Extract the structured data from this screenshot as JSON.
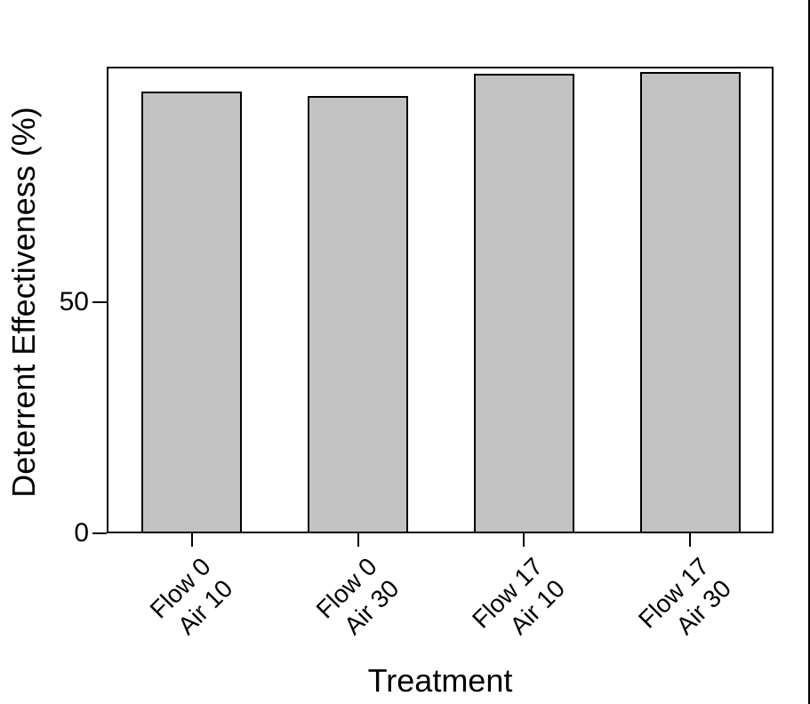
{
  "chart_data": {
    "type": "bar",
    "xlabel": "Treatment",
    "ylabel": "Deterrent Effectiveness (%)",
    "categories": [
      "Flow 0\nAir 10",
      "Flow 0\nAir 30",
      "Flow 17\nAir 10",
      "Flow 17\nAir 30"
    ],
    "values": [
      95.7,
      94.7,
      99.5,
      99.8
    ],
    "yticks": [
      0,
      50
    ],
    "ytick_labels": [
      "0",
      "50"
    ],
    "ylim": [
      0,
      101
    ],
    "grid": false,
    "legend": null,
    "colors": {
      "bar_fill": "#c2c2c2",
      "bar_border": "#000000",
      "axis": "#000000",
      "text": "#000000",
      "background": "#ffffff"
    }
  }
}
